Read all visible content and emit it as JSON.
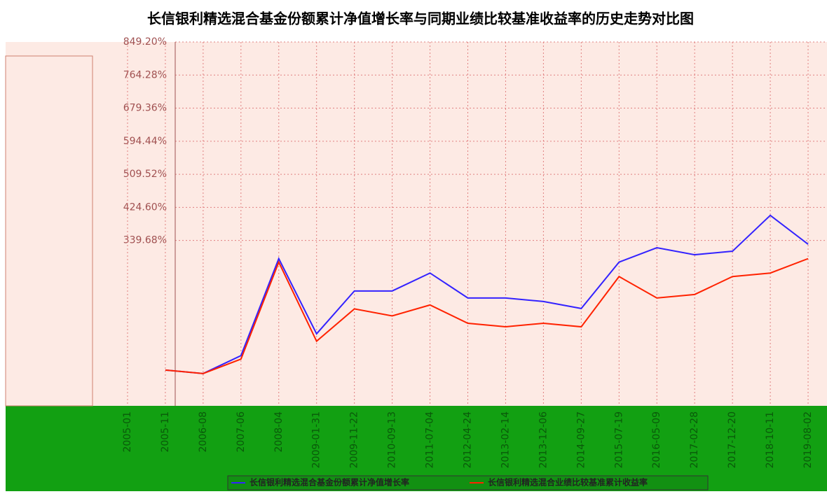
{
  "chart_data": {
    "type": "line",
    "title": "长信银利精选混合基金份额累计净值增长率与同期业绩比较基准收益率的历史走势对比图",
    "categories": [
      "2005-01",
      "2005-11",
      "2006-08",
      "2007-06",
      "2008-04",
      "2009-01-31",
      "2009-11-22",
      "2010-09-13",
      "2011-07-04",
      "2012-04-24",
      "2013-02-14",
      "2013-12-06",
      "2014-09-27",
      "2015-07-19",
      "2016-05-09",
      "2017-02-28",
      "2017-12-20",
      "2018-10-11",
      "2019-08-02"
    ],
    "series": [
      {
        "name": "长信银利精选混合基金份额累计净值增长率",
        "color": "#3322ff",
        "values": [
          null,
          7,
          -2,
          44,
          293,
          100,
          210,
          210,
          256,
          192,
          192,
          183,
          165,
          284,
          321,
          303,
          312,
          404,
          330
        ]
      },
      {
        "name": "长信银利精选混合业绩比较基准累计收益率",
        "color": "#ff2200",
        "values": [
          null,
          7,
          -2,
          35,
          284,
          81,
          164,
          146,
          174,
          127,
          118,
          127,
          118,
          247,
          192,
          201,
          247,
          256,
          293
        ]
      }
    ],
    "ylim": [
      -84.92,
      849.2
    ],
    "yticks": [
      {
        "value": 849.2,
        "label": "849.20%"
      },
      {
        "value": 764.28,
        "label": "764.28%"
      },
      {
        "value": 679.36,
        "label": "679.36%"
      },
      {
        "value": 594.44,
        "label": "594.44%"
      },
      {
        "value": 509.52,
        "label": "509.52%"
      },
      {
        "value": 424.6,
        "label": "424.60%"
      },
      {
        "value": 339.68,
        "label": "339.68%"
      }
    ],
    "grid": true
  }
}
